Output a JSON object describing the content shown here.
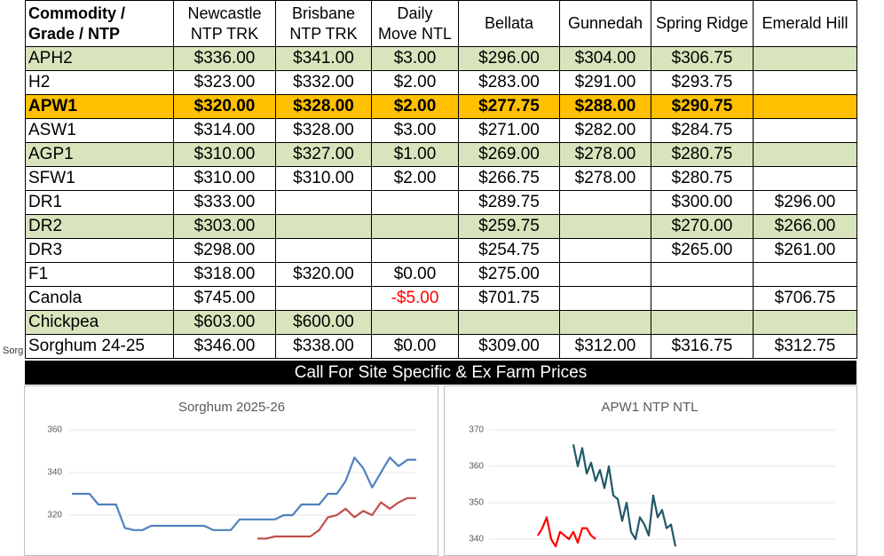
{
  "side_note": "Sorg",
  "table": {
    "header": [
      [
        "Commodity /",
        "Grade / NTP"
      ],
      [
        "Newcastle",
        "NTP TRK"
      ],
      [
        "Brisbane",
        "NTP TRK"
      ],
      [
        "Daily",
        "Move NTL"
      ],
      [
        "Bellata"
      ],
      [
        "Gunnedah"
      ],
      [
        "Spring Ridge"
      ],
      [
        "Emerald Hill"
      ]
    ],
    "rows": [
      {
        "fill": "#d8e4bc",
        "cells": [
          "APH2",
          "$336.00",
          "$341.00",
          "$3.00",
          "$296.00",
          "$304.00",
          "$306.75",
          null
        ]
      },
      {
        "fill": "#ffffff",
        "cells": [
          "H2",
          "$323.00",
          "$332.00",
          "$2.00",
          "$283.00",
          "$291.00",
          "$293.75",
          null
        ]
      },
      {
        "fill": "#ffc000",
        "bold": true,
        "cells": [
          "APW1",
          "$320.00",
          "$328.00",
          "$2.00",
          "$277.75",
          "$288.00",
          "$290.75",
          null
        ]
      },
      {
        "fill": "#ffffff",
        "cells": [
          "ASW1",
          "$314.00",
          "$328.00",
          "$3.00",
          "$271.00",
          "$282.00",
          "$284.75",
          null
        ]
      },
      {
        "fill": "#d8e4bc",
        "cells": [
          "AGP1",
          "$310.00",
          "$327.00",
          "$1.00",
          "$269.00",
          "$278.00",
          "$280.75",
          null
        ]
      },
      {
        "fill": "#ffffff",
        "cells": [
          "SFW1",
          "$310.00",
          "$310.00",
          "$2.00",
          "$266.75",
          "$278.00",
          "$280.75",
          null
        ]
      },
      {
        "fill": "#ffffff",
        "cells": [
          "DR1",
          "$333.00",
          null,
          null,
          "$289.75",
          null,
          "$300.00",
          "$296.00"
        ]
      },
      {
        "fill": "#d8e4bc",
        "cells": [
          "DR2",
          "$303.00",
          null,
          null,
          "$259.75",
          null,
          "$270.00",
          "$266.00"
        ]
      },
      {
        "fill": "#ffffff",
        "cells": [
          "DR3",
          "$298.00",
          null,
          null,
          "$254.75",
          null,
          "$265.00",
          "$261.00"
        ]
      },
      {
        "fill": "#ffffff",
        "cells": [
          "F1",
          "$318.00",
          "$320.00",
          "$0.00",
          "$275.00",
          null,
          null,
          null
        ]
      },
      {
        "fill": "#ffffff",
        "cells": [
          "Canola",
          "$745.00",
          null,
          "-$5.00",
          "$701.75",
          null,
          null,
          "$706.75"
        ]
      },
      {
        "fill": "#d8e4bc",
        "cells": [
          "Chickpea",
          "$603.00",
          "$600.00",
          null,
          null,
          null,
          null,
          null
        ]
      },
      {
        "fill": "#ffffff",
        "cells": [
          "Sorghum 24-25",
          "$346.00",
          "$338.00",
          "$0.00",
          "$309.00",
          "$312.00",
          "$316.75",
          "$312.75"
        ]
      }
    ],
    "negative_color": "#ff0000"
  },
  "banner": "Call For Site Specific & Ex Farm Prices",
  "chart_data": [
    {
      "type": "line",
      "title": "Sorghum 2025-26",
      "ylim": [
        305,
        360
      ],
      "yticks": [
        320,
        340,
        360
      ],
      "grid": true,
      "series": [
        {
          "color": "#4f81bd",
          "values": [
            330,
            330,
            330,
            325,
            325,
            325,
            314,
            313,
            313,
            315,
            315,
            315,
            315,
            315,
            315,
            315,
            313,
            313,
            313,
            318,
            318,
            318,
            318,
            318,
            320,
            320,
            325,
            325,
            325,
            330,
            330,
            336,
            347,
            342,
            333,
            340,
            347,
            343,
            346,
            346
          ]
        },
        {
          "color": "#c0504d",
          "values": [
            null,
            null,
            null,
            null,
            null,
            null,
            null,
            null,
            null,
            null,
            null,
            null,
            null,
            null,
            null,
            null,
            null,
            null,
            null,
            null,
            null,
            309,
            309,
            310,
            310,
            310,
            310,
            310,
            313,
            319,
            320,
            323,
            319,
            322,
            320,
            326,
            323,
            326,
            328,
            328
          ]
        }
      ]
    },
    {
      "type": "line",
      "title": "APW1 NTP NTL",
      "ylim": [
        337,
        370
      ],
      "yticks": [
        340,
        350,
        360,
        370
      ],
      "grid": true,
      "series": [
        {
          "color": "#215868",
          "values": [
            null,
            null,
            null,
            null,
            null,
            null,
            null,
            null,
            366,
            360,
            365,
            358,
            361,
            356,
            359,
            354,
            360,
            352,
            351,
            345,
            350,
            342,
            340,
            346,
            344,
            341,
            352,
            346,
            348,
            343,
            344,
            338
          ]
        },
        {
          "color": "#ff0000",
          "values": [
            341,
            343,
            346,
            340,
            338,
            342,
            341,
            340,
            342,
            339,
            343,
            343,
            341,
            340,
            null,
            null,
            null,
            null,
            null,
            null,
            null,
            null,
            null,
            null,
            null,
            null,
            null,
            null,
            null,
            null,
            null,
            null
          ]
        }
      ]
    }
  ]
}
